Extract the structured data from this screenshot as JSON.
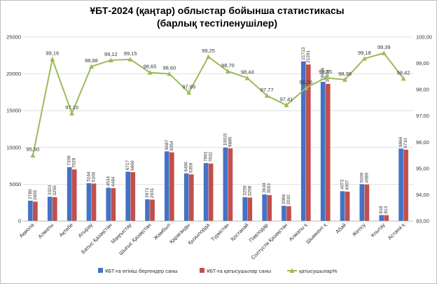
{
  "chart_data": {
    "type": "bar",
    "title": "ҰБТ-2024 (қаңтар) облыстар бойынша статистикасы (барлық тестіленушілер)",
    "categories": [
      "Ақмола",
      "Алматы",
      "Ақтөбе",
      "Атырау",
      "Батыс Қазақстан",
      "Маңғыстау",
      "Шығыс Қазақстан",
      "Жамбыл",
      "Қарағанды",
      "Қызылорда",
      "Түркістан",
      "Қостанай",
      "Павлодар",
      "Солтүстік Қазақстан",
      "Алматы қ",
      "Шымкент қ",
      "Абай",
      "Жетісу",
      "Ұлытау",
      "Астана қ"
    ],
    "series": [
      {
        "name": "ҰБТ-ға өтініш бергендер саны",
        "color": "#4472c4",
        "axis": "left",
        "values": [
          2780,
          3323,
          7339,
          5164,
          4534,
          6717,
          2971,
          9487,
          6496,
          7891,
          10015,
          3259,
          3634,
          2086,
          21713,
          18926,
          4073,
          5030,
          818,
          9866
        ],
        "labels": [
          "2780",
          "3323",
          "7339",
          "5164",
          "4534",
          "6717",
          "2971",
          "9487",
          "6496",
          "7891",
          "10015",
          "3259",
          "3634",
          "2086",
          "21713",
          "18926",
          "4073",
          "5030",
          "818",
          "9866"
        ]
      },
      {
        "name": "ҰБТ-ға қатысушылар саны",
        "color": "#c0504d",
        "axis": "left",
        "values": [
          2655,
          3256,
          7029,
          5106,
          4484,
          6660,
          2931,
          9354,
          6359,
          7832,
          9885,
          3208,
          3553,
          2032,
          21291,
          18663,
          4007,
          4989,
          813,
          9710
        ],
        "labels": [
          "2655",
          "3256",
          "7029",
          "5106",
          "4484",
          "6660",
          "2931",
          "9354",
          "6359",
          "7832",
          "9885",
          "3208",
          "3553",
          "2032",
          "21291",
          "18663",
          "4007",
          "4989",
          "813",
          "9710"
        ]
      },
      {
        "name": "қатысушылар%",
        "type": "line",
        "color": "#9bbb59",
        "axis": "right",
        "values": [
          95.5,
          99.16,
          97.1,
          98.88,
          99.12,
          99.15,
          98.65,
          98.6,
          97.89,
          99.25,
          98.7,
          98.44,
          97.77,
          97.41,
          98.06,
          98.45,
          98.38,
          99.18,
          99.39,
          98.42
        ],
        "labels": [
          "95,50",
          "99,16",
          "97,10",
          "98,88",
          "99,12",
          "99,15",
          "98,65",
          "98,60",
          "97,89",
          "99,25",
          "98,70",
          "98,44",
          "97,77",
          "97,41",
          "98,06",
          "98,45",
          "98,38",
          "99,18",
          "99,39",
          "98,42"
        ]
      }
    ],
    "y_left": {
      "min": 0,
      "max": 25000,
      "ticks": [
        "0",
        "5000",
        "10000",
        "15000",
        "20000",
        "25000"
      ]
    },
    "y_right": {
      "min": 93,
      "max": 100,
      "ticks": [
        "93,00",
        "94,00",
        "95,00",
        "96,00",
        "97,00",
        "98,00",
        "99,00",
        "100,00"
      ]
    },
    "legend": "bottom",
    "grid": true
  }
}
